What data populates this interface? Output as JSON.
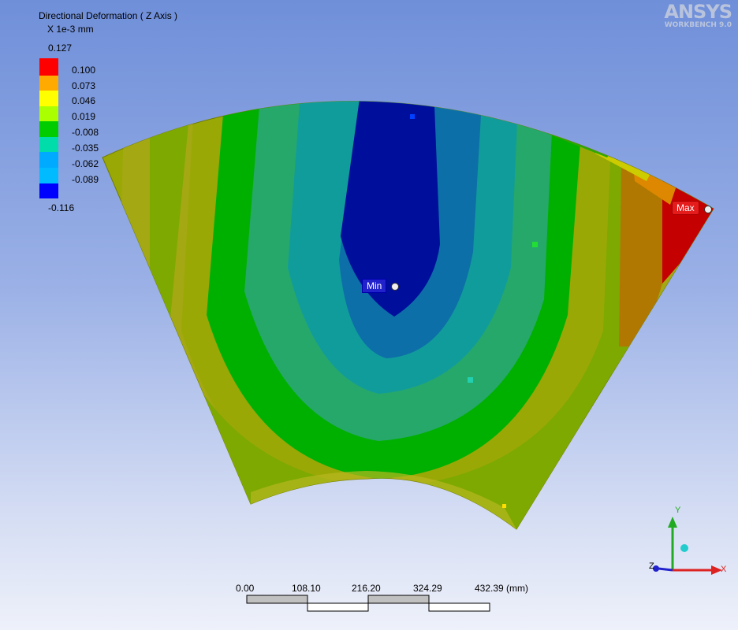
{
  "legend": {
    "title": "Directional Deformation ( Z Axis )",
    "units": "X 1e-3 mm",
    "max_value": "0.127",
    "min_value": "-0.116",
    "ticks": [
      "0.100",
      "0.073",
      "0.046",
      "0.019",
      "-0.008",
      "-0.035",
      "-0.062",
      "-0.089"
    ],
    "colors": [
      "#ff0000",
      "#ffaa00",
      "#ffff00",
      "#aaff00",
      "#00cc00",
      "#00ddaa",
      "#00aaff",
      "#0000ff"
    ]
  },
  "logo": {
    "name": "ANSYS",
    "subtitle": "WORKBENCH 9.0"
  },
  "probes": {
    "min_label": "Min",
    "max_label": "Max"
  },
  "scale_bar": {
    "labels": [
      "0.00",
      "108.10",
      "216.20",
      "324.29",
      "432.39 (mm)"
    ]
  },
  "triad": {
    "x_label": "X",
    "y_label": "Y",
    "z_label": "Z"
  }
}
